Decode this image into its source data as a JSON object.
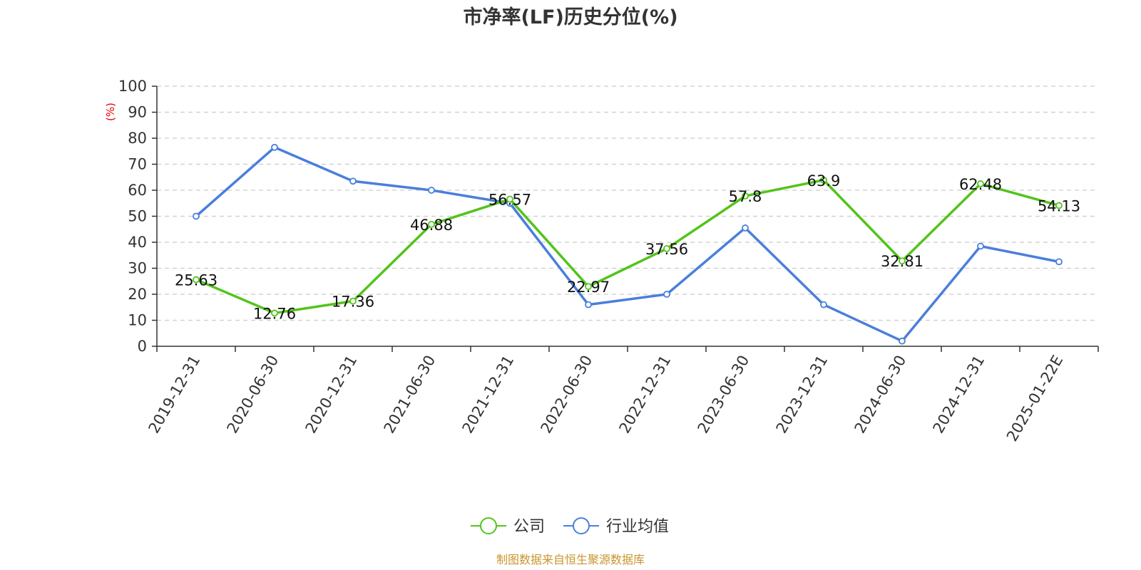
{
  "chart_data": {
    "type": "line",
    "title": "市净率(LF)历史分位(%)",
    "ylabel": "(%)",
    "ylim": [
      0,
      100
    ],
    "yticks": [
      0,
      10,
      20,
      30,
      40,
      50,
      60,
      70,
      80,
      90,
      100
    ],
    "grid": true,
    "legend_position": "bottom",
    "categories": [
      "2019-12-31",
      "2020-06-30",
      "2020-12-31",
      "2021-06-30",
      "2021-12-31",
      "2022-06-30",
      "2022-12-31",
      "2023-06-30",
      "2023-12-31",
      "2024-06-30",
      "2024-12-31",
      "2025-01-22E"
    ],
    "series": [
      {
        "name": "公司",
        "color": "#52c41a",
        "values": [
          25.63,
          12.76,
          17.36,
          46.88,
          56.57,
          22.97,
          37.56,
          57.8,
          63.9,
          32.81,
          62.48,
          54.13
        ],
        "labels": [
          "25.63",
          "12.76",
          "17.36",
          "46.88",
          "56.57",
          "22.97",
          "37.56",
          "57.8",
          "63.9",
          "32.81",
          "62.48",
          "54.13"
        ],
        "show_labels": true
      },
      {
        "name": "行业均值",
        "color": "#4a7fdb",
        "values": [
          50,
          76.5,
          63.5,
          60,
          55,
          16,
          20,
          45.5,
          16,
          2,
          38.5,
          32.5
        ],
        "show_labels": false
      }
    ],
    "source": "制图数据来自恒生聚源数据库"
  }
}
